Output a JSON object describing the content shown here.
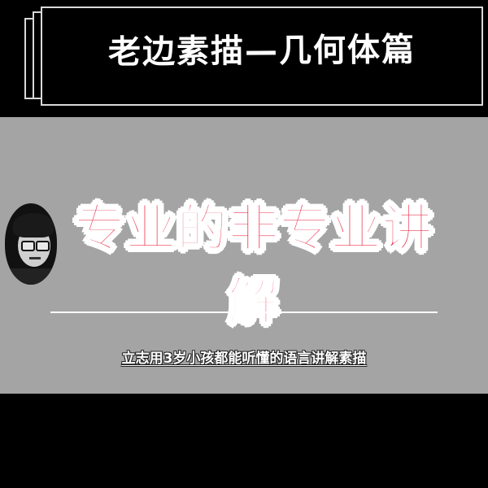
{
  "header": {
    "title": "老边素描—几何体篇"
  },
  "banner": {
    "headline": "专业的非专业讲解",
    "subtitle": "立志用3岁小孩都能听懂的语言讲解素描"
  },
  "colors": {
    "background": "#000000",
    "band": "#a4a4a4",
    "headline": "#e8334e",
    "text": "#ffffff"
  }
}
